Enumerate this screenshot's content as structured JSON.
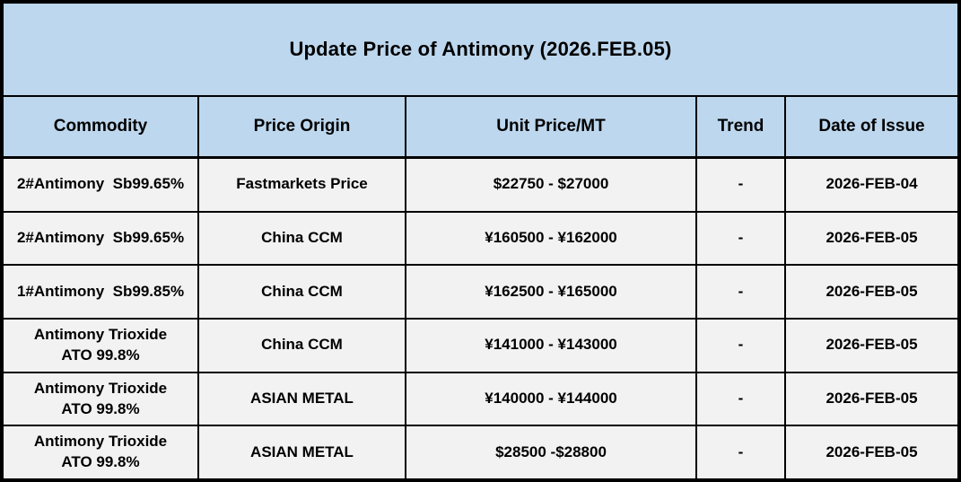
{
  "title": "Update Price of Antimony (2026.FEB.05)",
  "colors": {
    "title_header_bg": "#BDD7EE",
    "row_bg": "#F2F2F2",
    "border": "#000000",
    "text": "#000000"
  },
  "table": {
    "columns": [
      "Commodity",
      "Price Origin",
      "Unit Price/MT",
      "Trend",
      "Date of Issue"
    ],
    "rows": [
      {
        "commodity": "2#Antimony  Sb99.65%",
        "origin": "Fastmarkets Price",
        "price": "$22750 - $27000",
        "trend": "-",
        "date": "2026-FEB-04"
      },
      {
        "commodity": "2#Antimony  Sb99.65%",
        "origin": "China CCM",
        "price": "¥160500 - ¥162000",
        "trend": "-",
        "date": "2026-FEB-05"
      },
      {
        "commodity": "1#Antimony  Sb99.85%",
        "origin": "China CCM",
        "price": "¥162500 - ¥165000",
        "trend": "-",
        "date": "2026-FEB-05"
      },
      {
        "commodity": "Antimony Trioxide\nATO 99.8%",
        "origin": "China CCM",
        "price": "¥141000 - ¥143000",
        "trend": "-",
        "date": "2026-FEB-05"
      },
      {
        "commodity": "Antimony Trioxide\nATO 99.8%",
        "origin": "ASIAN METAL",
        "price": "¥140000 - ¥144000",
        "trend": "-",
        "date": "2026-FEB-05"
      },
      {
        "commodity": "Antimony Trioxide\nATO 99.8%",
        "origin": "ASIAN METAL",
        "price": "$28500 -$28800",
        "trend": "-",
        "date": "2026-FEB-05"
      }
    ]
  }
}
